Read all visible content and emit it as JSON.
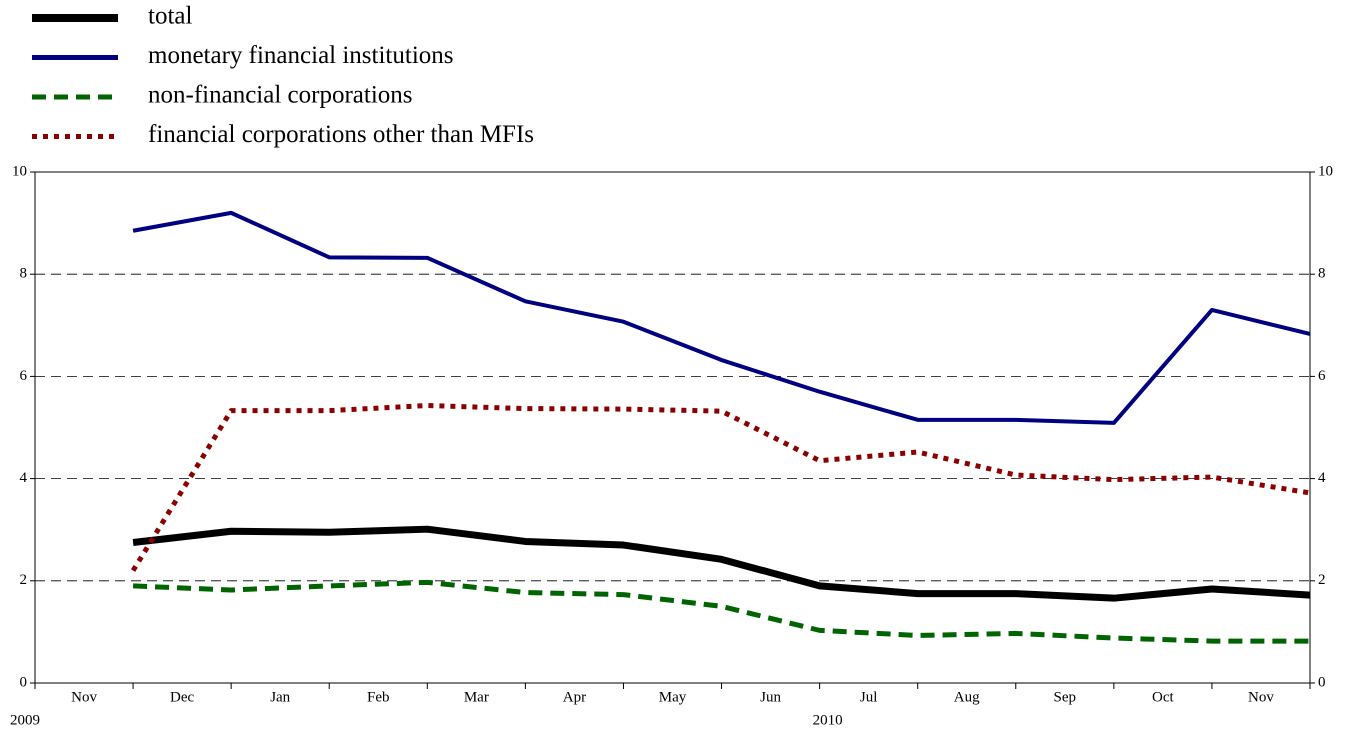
{
  "chart_data": {
    "type": "line",
    "categories": [
      "Nov",
      "Dec",
      "Jan",
      "Feb",
      "Mar",
      "Apr",
      "May",
      "Jun",
      "Jul",
      "Aug",
      "Sep",
      "Oct",
      "Nov"
    ],
    "year_labels": [
      "2009",
      null,
      null,
      null,
      null,
      null,
      null,
      null,
      "2010",
      null,
      null,
      null,
      null
    ],
    "series": [
      {
        "name": "total",
        "color": "#000000",
        "style": "solid",
        "values": [
          2.75,
          2.97,
          2.95,
          3.01,
          2.77,
          2.7,
          2.42,
          1.9,
          1.75,
          1.75,
          1.66,
          1.84,
          1.72
        ]
      },
      {
        "name": "monetary financial institutions",
        "color": "#000080",
        "style": "solid",
        "values": [
          8.85,
          9.2,
          8.33,
          8.32,
          7.47,
          7.07,
          6.32,
          5.7,
          5.15,
          5.15,
          5.09,
          7.3,
          6.83
        ]
      },
      {
        "name": "non-financial corporations",
        "color": "#006400",
        "style": "dashed",
        "values": [
          1.9,
          1.82,
          1.9,
          1.97,
          1.77,
          1.73,
          1.5,
          1.03,
          0.93,
          0.97,
          0.88,
          0.82,
          0.82
        ]
      },
      {
        "name": "financial corporations other than MFIs",
        "color": "#8b0000",
        "style": "dotted",
        "values": [
          2.2,
          5.33,
          5.33,
          5.43,
          5.37,
          5.36,
          5.32,
          4.35,
          4.52,
          4.07,
          3.98,
          4.03,
          3.72
        ]
      }
    ],
    "ylim": [
      0,
      10
    ],
    "yticks": [
      0,
      2,
      4,
      6,
      8,
      10
    ],
    "grid": true,
    "legend": "top-left"
  }
}
